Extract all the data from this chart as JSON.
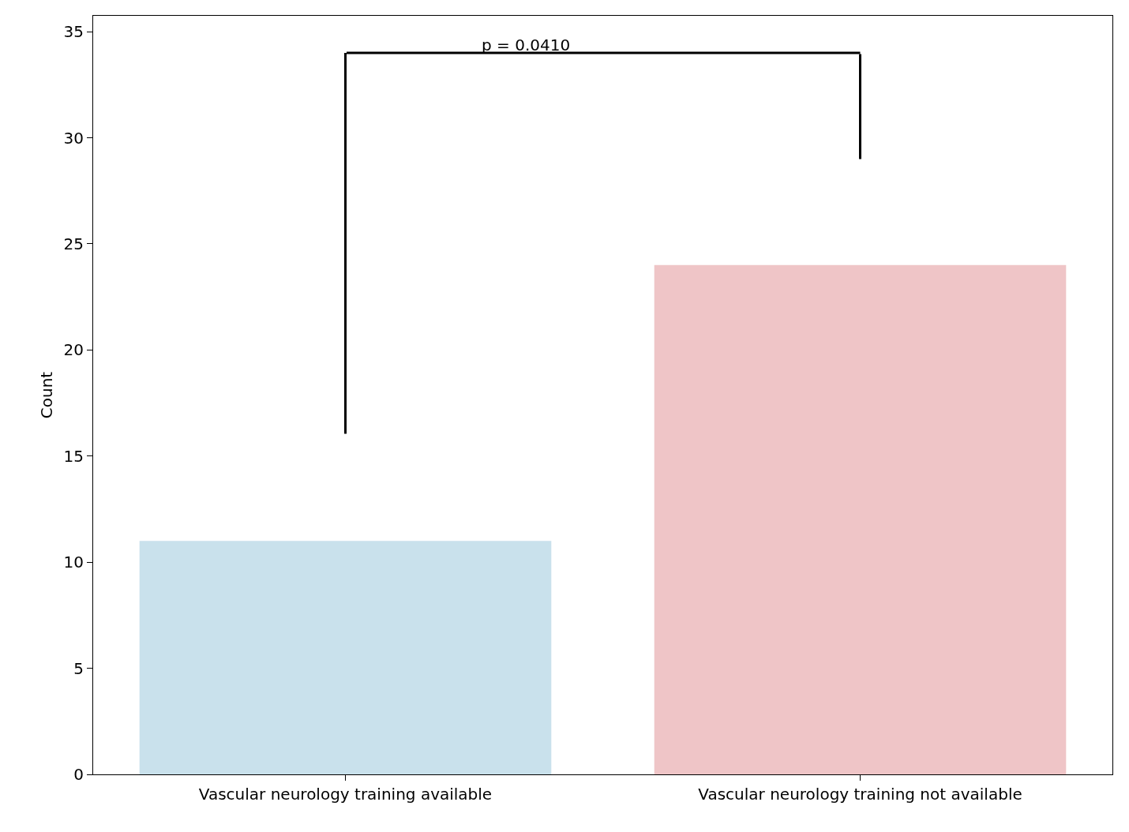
{
  "chart_data": {
    "type": "bar",
    "ylabel": "Count",
    "categories": [
      "Vascular neurology training available",
      "Vascular neurology training not available"
    ],
    "values": [
      11,
      24
    ],
    "colors": [
      "#c9e1ec",
      "#efc5c7"
    ],
    "ylim": [
      0,
      35.75
    ],
    "yticks": [
      0,
      5,
      10,
      15,
      20,
      25,
      30,
      35
    ],
    "annotations": [
      "p = 0.0410"
    ]
  }
}
